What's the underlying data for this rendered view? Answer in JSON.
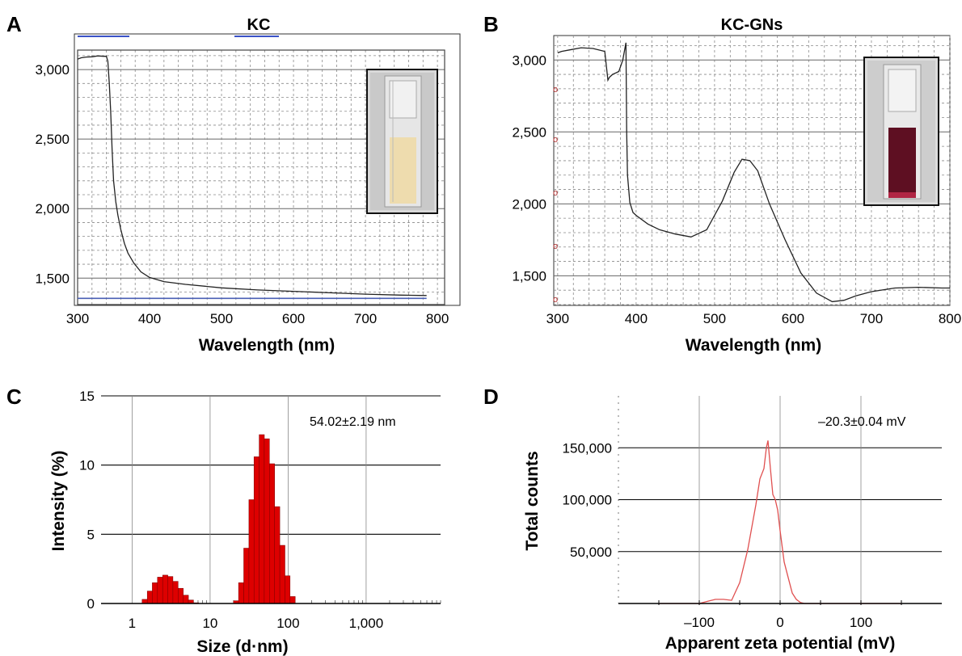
{
  "panels": {
    "A": {
      "letter": "A",
      "title": "KC"
    },
    "B": {
      "letter": "B",
      "title": "KC-GNs"
    },
    "C": {
      "letter": "C",
      "annotation": "54.02±2.19 nm"
    },
    "D": {
      "letter": "D",
      "annotation": "–20.3±0.04 mV"
    }
  },
  "colors": {
    "uv_line": "#222222",
    "uv_baseline": "#4a5fb5",
    "histogram": "#dd0000",
    "zeta_line": "#e05050",
    "grid": "#666666"
  },
  "chart_data": [
    {
      "id": "A",
      "type": "line",
      "title": "KC",
      "xlabel": "Wavelength (nm)",
      "ylabel": "",
      "xlim": [
        300,
        810
      ],
      "ylim": [
        1310,
        3140
      ],
      "xticks": [
        "300",
        "400",
        "500",
        "600",
        "700",
        "800"
      ],
      "yticks": [
        "1,500",
        "2,000",
        "2,500",
        "3,000"
      ],
      "grid": true,
      "inset": "cuvette photo, pale yellow solution",
      "series": [
        {
          "x": [
            300,
            305,
            312,
            320,
            328,
            336,
            340,
            342,
            344,
            346,
            348,
            350,
            353,
            356,
            360,
            365,
            370,
            378,
            388,
            400,
            420,
            450,
            500,
            550,
            600,
            650,
            700,
            750,
            785
          ],
          "y": [
            3075,
            3085,
            3090,
            3092,
            3098,
            3095,
            3095,
            3060,
            2900,
            2700,
            2420,
            2200,
            2050,
            1950,
            1850,
            1750,
            1680,
            1610,
            1545,
            1505,
            1475,
            1455,
            1430,
            1415,
            1405,
            1395,
            1385,
            1378,
            1375
          ]
        },
        {
          "x": [
            300,
            785
          ],
          "y": [
            1355,
            1355
          ]
        }
      ]
    },
    {
      "id": "B",
      "type": "line",
      "title": "KC-GNs",
      "xlabel": "Wavelength (nm)",
      "ylabel": "",
      "xlim": [
        295,
        800
      ],
      "ylim": [
        1300,
        3170
      ],
      "xticks": [
        "300",
        "400",
        "500",
        "600",
        "700",
        "800"
      ],
      "yticks": [
        "1,500",
        "2,000",
        "2,500",
        "3,000"
      ],
      "grid": true,
      "inset": "cuvette photo, deep red solution",
      "series": [
        {
          "x": [
            300,
            305,
            315,
            330,
            345,
            360,
            364,
            366,
            370,
            378,
            383,
            387,
            388,
            389,
            392,
            396,
            400,
            415,
            430,
            450,
            470,
            490,
            510,
            525,
            535,
            545,
            555,
            570,
            590,
            610,
            630,
            650,
            665,
            680,
            700,
            730,
            760,
            790,
            800
          ],
          "y": [
            3050,
            3060,
            3070,
            3085,
            3080,
            3060,
            2860,
            2880,
            2900,
            2920,
            3000,
            3120,
            2500,
            2200,
            2010,
            1940,
            1920,
            1860,
            1820,
            1790,
            1770,
            1820,
            2020,
            2220,
            2310,
            2300,
            2230,
            2000,
            1750,
            1520,
            1380,
            1320,
            1330,
            1360,
            1390,
            1415,
            1420,
            1415,
            1415
          ]
        }
      ]
    },
    {
      "id": "C",
      "type": "bar",
      "xlabel": "Size (d·nm)",
      "ylabel": "Intensity (%)",
      "xscale": "log",
      "xlim": [
        0.4,
        9000
      ],
      "ylim": [
        0,
        15
      ],
      "xticks": [
        "1",
        "10",
        "100",
        "1,000"
      ],
      "yticks": [
        "0",
        "5",
        "10",
        "15"
      ],
      "grid": true,
      "series": [
        {
          "name": "",
          "x": [
            1.45,
            1.69,
            1.96,
            2.28,
            2.66,
            3.09,
            3.6,
            4.19,
            4.88,
            5.68,
            6.61,
            21.5,
            25,
            29.1,
            33.9,
            39.4,
            45.9,
            53.4,
            62.2,
            72.4,
            84.3,
            98.1,
            114.2
          ],
          "y": [
            0.3,
            0.9,
            1.5,
            1.9,
            2.05,
            1.95,
            1.6,
            1.1,
            0.6,
            0.25,
            0.05,
            0.2,
            1.5,
            4,
            7.5,
            10.6,
            12.2,
            11.9,
            10.1,
            7,
            4.2,
            2,
            0.5
          ]
        }
      ]
    },
    {
      "id": "D",
      "type": "line",
      "xlabel": "Apparent zeta potential (mV)",
      "ylabel": "Total counts",
      "xlim": [
        -200,
        200
      ],
      "ylim": [
        0,
        200000
      ],
      "xticks": [
        "–100",
        "0",
        "100"
      ],
      "yticks": [
        "50,000",
        "100,000",
        "150,000"
      ],
      "grid": true,
      "series": [
        {
          "name": "",
          "x": [
            -150,
            -100,
            -90,
            -80,
            -70,
            -60,
            -50,
            -40,
            -30,
            -25,
            -20,
            -17,
            -15,
            -12,
            -9,
            -6,
            -3,
            0,
            5,
            10,
            15,
            20,
            25,
            30,
            35,
            40,
            50,
            100,
            150
          ],
          "y": [
            0,
            0,
            2000,
            4000,
            4000,
            3000,
            20000,
            52000,
            95000,
            120000,
            130000,
            150000,
            157000,
            130000,
            105000,
            100000,
            90000,
            70000,
            40000,
            25000,
            10000,
            4000,
            1000,
            0,
            0,
            0,
            0,
            0,
            0
          ]
        }
      ]
    }
  ]
}
